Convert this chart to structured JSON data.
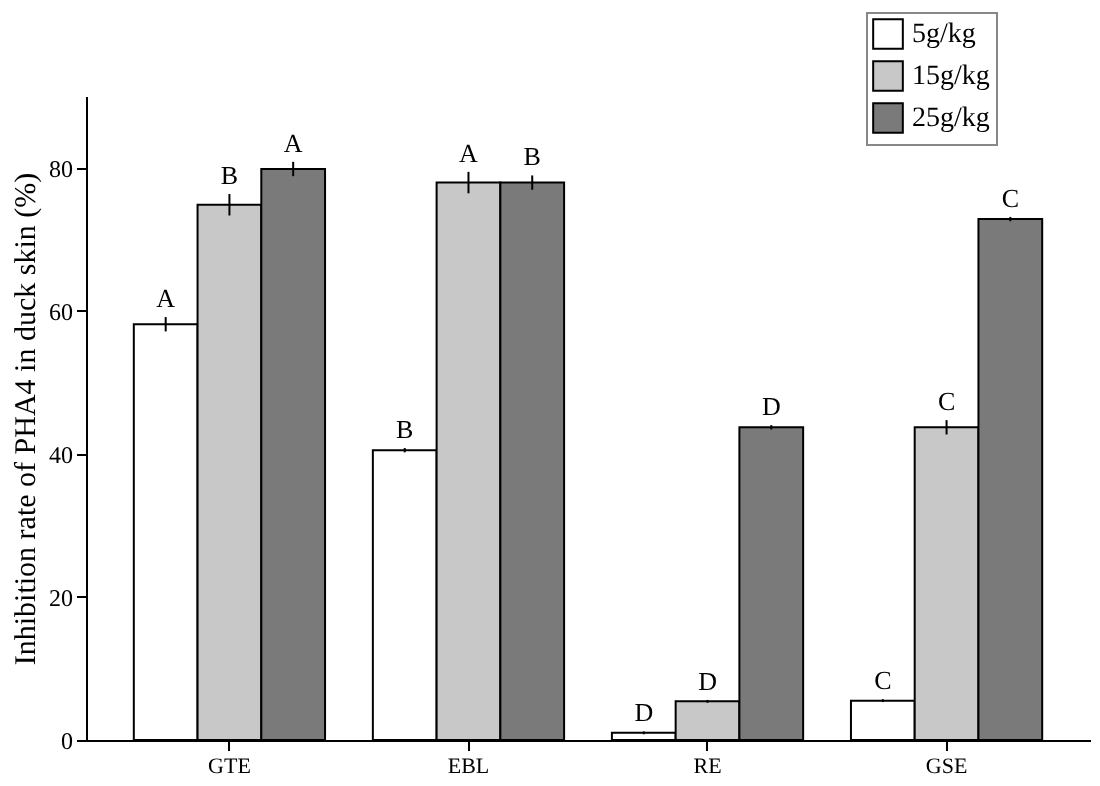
{
  "chart_data": {
    "type": "bar",
    "ylabel": "Inhibition rate of  PHA4 in duck skin (%)",
    "categories": [
      "GTE",
      "EBL",
      "RE",
      "GSE"
    ],
    "series": [
      {
        "name": "5g/kg",
        "color": "#ffffff",
        "values": [
          58.1,
          40.5,
          1.0,
          5.5
        ],
        "errors": [
          1,
          0.3,
          0.2,
          0.2
        ],
        "value_labels": [
          "A",
          "B",
          "D",
          "C"
        ]
      },
      {
        "name": "15g/kg",
        "color": "#c8c8c8",
        "values": [
          74.8,
          77.9,
          5.4,
          43.7
        ],
        "errors": [
          1.5,
          1.5,
          0.2,
          1
        ],
        "value_labels": [
          "B",
          "A",
          "D",
          "C"
        ]
      },
      {
        "name": "25g/kg",
        "color": "#7a7a7a",
        "values": [
          79.8,
          77.9,
          43.7,
          72.8
        ],
        "errors": [
          1,
          1,
          0.3,
          0.3
        ],
        "value_labels": [
          "A",
          "B",
          "D",
          "C"
        ]
      }
    ],
    "ylim": [
      0,
      90
    ],
    "yticks": [
      0,
      20,
      40,
      60,
      80
    ],
    "grid": false,
    "legend": "top right"
  }
}
